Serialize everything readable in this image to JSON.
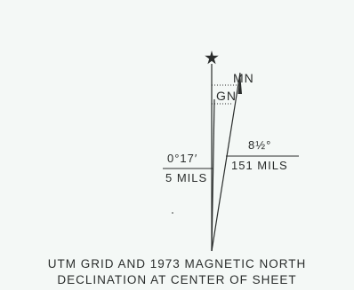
{
  "diagram": {
    "grid_north_label": "GN",
    "magnetic_north_label": "MN",
    "gn_declination_degrees": "0°17′",
    "gn_declination_mils": "5 MILS",
    "mn_declination_degrees": "8½°",
    "mn_declination_mils": "151 MILS",
    "true_north_symbol": "star-icon"
  },
  "caption": {
    "line1": "UTM GRID AND 1973 MAGNETIC NORTH",
    "line2": "DECLINATION AT CENTER OF SHEET"
  },
  "colors": {
    "background": "#f4f8f6",
    "ink": "#2a2d2c"
  }
}
